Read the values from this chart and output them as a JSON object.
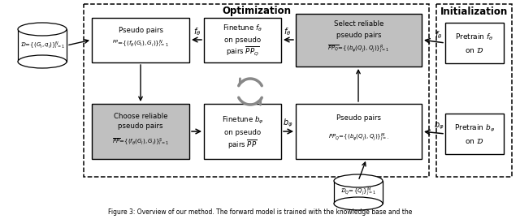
{
  "fig_width": 6.4,
  "fig_height": 2.7,
  "dpi": 100,
  "bg_color": "#ffffff",
  "optimization_title": "Optimization",
  "initialization_title": "Initialization",
  "dataset_label": "$\\mathcal{D}\\!=\\!\\{(G_i,q_i)\\}_{i=1}^N$",
  "dq_label": "$\\mathcal{D}_Q\\!=\\!\\{Q_j\\}_{j=1}^M$",
  "box1_line1": "Pseudo pairs",
  "box1_line2": "$^{PP}\\!=\\!\\{(f_\\theta(G_i),G_i)\\}_{i=1}^N$",
  "box2_line1": "Finetune $f_\\theta$",
  "box2_line2": "on pseudo",
  "box2_line3": "pairs $\\overline{PP_Q}$",
  "box3_line1": "Select reliable",
  "box3_line2": "pseudo pairs",
  "box3_line3": "$\\overline{PP_Q}\\!=\\!\\{(b_\\varphi(Q_j),Q_j)\\}_{j=1}^R$",
  "box4_line1": "Choose reliable",
  "box4_line2": "pseudo pairs",
  "box4_line3": "$\\overline{PP}\\!=\\!\\{(f_\\theta(G_i),G_i)\\}_{i=1}^S$",
  "box5_line1": "Finetune $b_\\varphi$",
  "box5_line2": "on pseudo",
  "box5_line3": "pairs $\\overline{PP}$",
  "box6_line1": "Pseudo pairs",
  "box6_line2": "$PP_Q\\!=\\!\\{(b_\\varphi(Q_j),Q_j)\\}_{j=\\cdot}^M$",
  "init1_line1": "Pretrain $f_\\theta$",
  "init1_line2": "on $\\mathcal{D}$",
  "init2_line1": "Pretrain $b_\\varphi$",
  "init2_line2": "on $\\mathcal{D}$",
  "label_f": "$f_\\theta$",
  "label_b": "$b_\\varphi$",
  "caption": "Figure 3: Overview of our method. The forward model is trained with the knowledge base and the"
}
